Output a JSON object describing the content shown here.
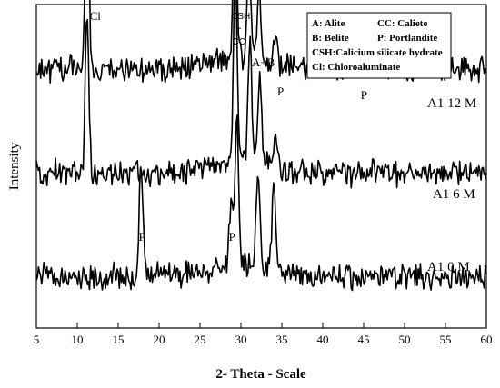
{
  "chart_data": {
    "type": "line",
    "xlabel": "2- Theta - Scale",
    "ylabel": "Intensity",
    "xlim": [
      5,
      60
    ],
    "x_ticks": [
      5,
      10,
      15,
      20,
      25,
      30,
      35,
      40,
      45,
      50,
      55,
      60
    ],
    "y_ticks": "none",
    "grid": false,
    "legend_placement": "top-right",
    "legend": [
      [
        "A: Alite",
        "CC: Caliete"
      ],
      [
        "B: Belite",
        "P: Portlandite"
      ],
      [
        "CSH:Calicium silicate hydrate",
        ""
      ],
      [
        "Cl: Chloroaluminate",
        ""
      ]
    ],
    "series": [
      {
        "name": "A1 12 M",
        "baseline": 0.8,
        "noise": 0.06,
        "peaks": [
          [
            11.2,
            0.7
          ],
          [
            29.3,
            0.48
          ],
          [
            31.0,
            0.26
          ],
          [
            32.2,
            0.22
          ],
          [
            34.3,
            0.1
          ],
          [
            39.5,
            0.12
          ],
          [
            44.6,
            0.1
          ]
        ]
      },
      {
        "name": "A1 6 M",
        "baseline": 0.48,
        "noise": 0.06,
        "peaks": [
          [
            11.2,
            0.48
          ],
          [
            29.3,
            0.6
          ],
          [
            31.1,
            0.4
          ],
          [
            32.3,
            0.26
          ],
          [
            34.3,
            0.1
          ]
        ]
      },
      {
        "name": "A1 0 M",
        "baseline": 0.16,
        "noise": 0.06,
        "peaks": [
          [
            17.8,
            0.36
          ],
          [
            28.8,
            0.2
          ],
          [
            29.5,
            0.48
          ],
          [
            32.1,
            0.32
          ],
          [
            34.0,
            0.26
          ]
        ]
      }
    ],
    "annotations": [
      {
        "text": "Cl",
        "x": 11.2,
        "series": 0
      },
      {
        "text": "CSH",
        "x": 29.3,
        "series": 0
      },
      {
        "text": "+",
        "x": 29.3,
        "series": 0
      },
      {
        "text": "CC",
        "x": 29.3,
        "series": 0
      },
      {
        "text": "A+B",
        "x": 32.3,
        "series": 0
      },
      {
        "text": "P",
        "x": 34.4,
        "series": 0
      },
      {
        "text": "P",
        "x": 44.6,
        "series": 0
      },
      {
        "text": "P",
        "x": 17.8,
        "series": 2
      },
      {
        "text": "P",
        "x": 28.8,
        "series": 2
      }
    ]
  }
}
